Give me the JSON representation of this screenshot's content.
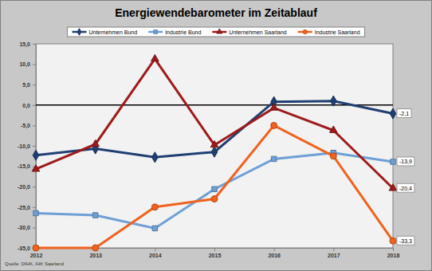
{
  "chart_data": {
    "type": "line",
    "title": "Energiewendebarometer im Zeitablauf",
    "source": "Quelle: DIHK, IHK Saarland",
    "categories": [
      "2012",
      "2013",
      "2014",
      "2015",
      "2016",
      "2017",
      "2018"
    ],
    "series": [
      {
        "name": "Unternehmen Bund",
        "color": "#1f3f73",
        "marker": "diamond",
        "values": [
          -12.3,
          -10.7,
          -12.8,
          -11.5,
          0.8,
          1.0,
          -2.1
        ],
        "value_labels": [
          null,
          null,
          null,
          null,
          null,
          null,
          "-2,1"
        ]
      },
      {
        "name": "Industrie Bund",
        "color": "#6e9fd6",
        "marker": "square",
        "values": [
          -26.5,
          -27.0,
          -30.2,
          -20.6,
          -13.2,
          -11.7,
          -13.9
        ],
        "value_labels": [
          null,
          null,
          null,
          null,
          null,
          null,
          "-13,9"
        ]
      },
      {
        "name": "Unternehmen Saarland",
        "color": "#9e1a1a",
        "marker": "triangle",
        "values": [
          -15.7,
          -9.6,
          11.3,
          -9.8,
          -0.7,
          -6.2,
          -20.4
        ],
        "value_labels": [
          null,
          null,
          null,
          null,
          null,
          null,
          "-20,4"
        ]
      },
      {
        "name": "Industrie Saarland",
        "color": "#f0621e",
        "marker": "circle",
        "values": [
          -35.0,
          -35.0,
          -25.0,
          -23.0,
          -5.0,
          -12.5,
          -33.3
        ],
        "value_labels": [
          null,
          null,
          null,
          null,
          null,
          null,
          "-33,3"
        ]
      }
    ],
    "ylim": [
      -35,
      15
    ],
    "yticks": [
      {
        "value": 15,
        "label": "15,0"
      },
      {
        "value": 10,
        "label": "10,0"
      },
      {
        "value": 5,
        "label": "5,0"
      },
      {
        "value": 0,
        "label": "0,0"
      },
      {
        "value": -5,
        "label": "-5,0"
      },
      {
        "value": -10,
        "label": "-10,0"
      },
      {
        "value": -15,
        "label": "-15,0"
      },
      {
        "value": -20,
        "label": "-20,0"
      },
      {
        "value": -25,
        "label": "-25,0"
      },
      {
        "value": -30,
        "label": "-30,0"
      },
      {
        "value": -35,
        "label": "-35,0"
      }
    ],
    "baseline": 0,
    "grid": false,
    "legend": "top"
  }
}
